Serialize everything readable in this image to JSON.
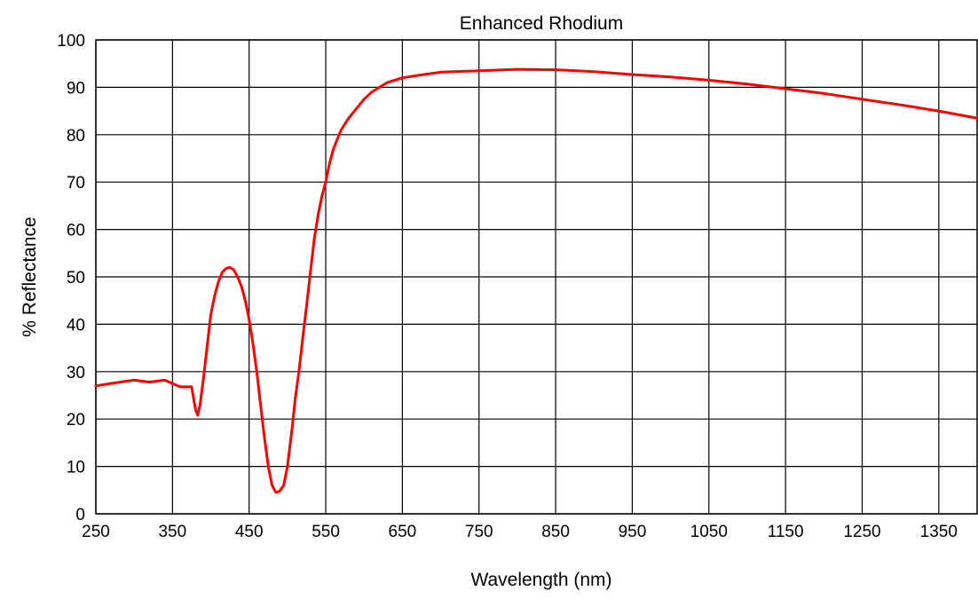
{
  "chart_data": {
    "type": "line",
    "title": "Enhanced Rhodium",
    "xlabel": "Wavelength (nm)",
    "ylabel": "% Reflectance",
    "xlim": [
      250,
      1400
    ],
    "ylim": [
      0,
      100
    ],
    "xticks": [
      250,
      350,
      450,
      550,
      650,
      750,
      850,
      950,
      1050,
      1150,
      1250,
      1350
    ],
    "yticks": [
      0,
      10,
      20,
      30,
      40,
      50,
      60,
      70,
      80,
      90,
      100
    ],
    "grid": true,
    "series": [
      {
        "color": "#ff0000",
        "x": [
          250,
          270,
          290,
          300,
          310,
          320,
          330,
          340,
          350,
          360,
          370,
          375,
          380,
          383,
          386,
          390,
          395,
          400,
          405,
          410,
          415,
          420,
          425,
          430,
          435,
          440,
          445,
          450,
          455,
          460,
          465,
          470,
          475,
          480,
          485,
          490,
          495,
          500,
          503,
          506,
          510,
          515,
          520,
          525,
          530,
          535,
          540,
          545,
          550,
          555,
          560,
          570,
          580,
          590,
          600,
          610,
          620,
          630,
          640,
          650,
          670,
          700,
          750,
          800,
          850,
          900,
          950,
          1000,
          1050,
          1100,
          1150,
          1200,
          1250,
          1300,
          1350,
          1400
        ],
        "y": [
          27,
          27.5,
          28,
          28.2,
          28,
          27.8,
          28,
          28.2,
          27.5,
          26.8,
          26.8,
          26.8,
          22,
          20.8,
          23,
          28,
          35,
          42,
          46,
          49,
          51,
          51.8,
          52,
          51.5,
          50,
          48,
          45,
          41,
          36,
          30,
          23,
          16,
          10,
          6,
          4.5,
          4.8,
          6,
          10,
          14,
          18,
          24,
          30,
          37,
          44,
          51,
          58,
          63,
          67,
          70,
          74,
          77,
          81,
          83.5,
          85.5,
          87.5,
          89,
          90,
          91,
          91.5,
          92,
          92.5,
          93.2,
          93.5,
          93.8,
          93.7,
          93.3,
          92.7,
          92.2,
          91.5,
          90.7,
          89.7,
          88.7,
          87.5,
          86.3,
          85,
          83.5
        ]
      }
    ]
  }
}
